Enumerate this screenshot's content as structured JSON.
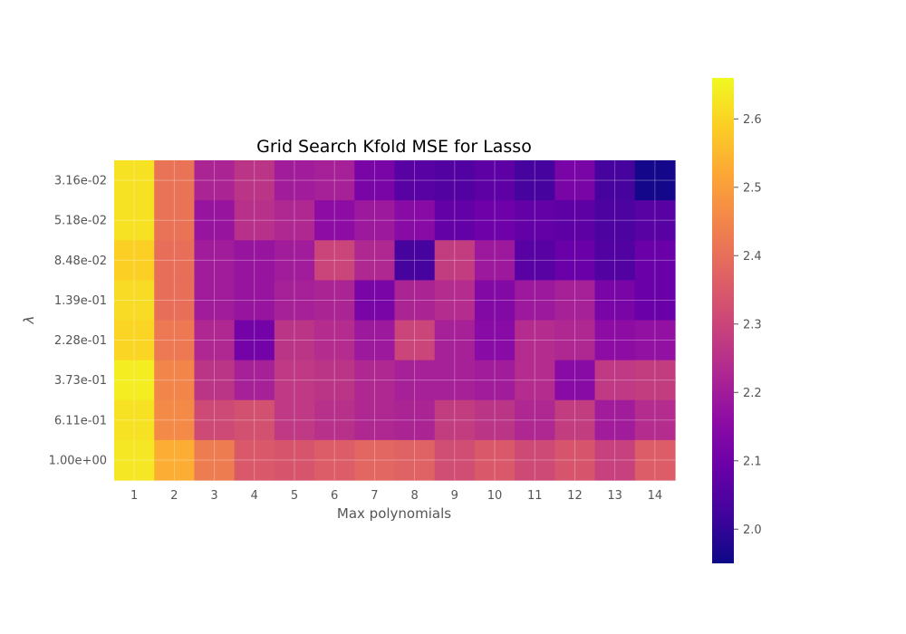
{
  "chart_data": {
    "type": "heatmap",
    "title": "Grid Search Kfold MSE for Lasso",
    "xlabel": "Max polynomials",
    "ylabel": "λ",
    "x_categories": [
      "1",
      "2",
      "3",
      "4",
      "5",
      "6",
      "7",
      "8",
      "9",
      "10",
      "11",
      "12",
      "13",
      "14"
    ],
    "y_categories": [
      "3.16e-02",
      "5.18e-02",
      "8.48e-02",
      "1.39e-01",
      "2.28e-01",
      "3.73e-01",
      "6.11e-01",
      "1.00e+00"
    ],
    "values": [
      [
        2.62,
        2.41,
        2.22,
        2.26,
        2.2,
        2.21,
        2.12,
        2.06,
        2.05,
        2.07,
        2.03,
        2.12,
        2.03,
        1.96
      ],
      [
        2.62,
        2.41,
        2.18,
        2.25,
        2.23,
        2.16,
        2.19,
        2.15,
        2.08,
        2.1,
        2.08,
        2.07,
        2.04,
        2.06
      ],
      [
        2.59,
        2.4,
        2.2,
        2.18,
        2.2,
        2.3,
        2.23,
        2.03,
        2.28,
        2.19,
        2.06,
        2.09,
        2.05,
        2.09
      ],
      [
        2.61,
        2.4,
        2.2,
        2.18,
        2.21,
        2.22,
        2.12,
        2.22,
        2.24,
        2.14,
        2.19,
        2.21,
        2.12,
        2.09
      ],
      [
        2.6,
        2.42,
        2.23,
        2.11,
        2.26,
        2.24,
        2.19,
        2.3,
        2.21,
        2.15,
        2.24,
        2.23,
        2.16,
        2.17
      ],
      [
        2.64,
        2.45,
        2.26,
        2.21,
        2.27,
        2.26,
        2.23,
        2.21,
        2.21,
        2.2,
        2.24,
        2.15,
        2.27,
        2.28
      ],
      [
        2.62,
        2.46,
        2.31,
        2.33,
        2.27,
        2.25,
        2.23,
        2.22,
        2.28,
        2.26,
        2.23,
        2.28,
        2.2,
        2.24
      ],
      [
        2.63,
        2.53,
        2.43,
        2.35,
        2.34,
        2.36,
        2.38,
        2.37,
        2.32,
        2.35,
        2.31,
        2.34,
        2.29,
        2.36
      ]
    ],
    "colorbar": {
      "min": 1.95,
      "max": 2.66,
      "ticks": [
        "2.0",
        "2.1",
        "2.2",
        "2.3",
        "2.4",
        "2.5",
        "2.6"
      ],
      "colormap": "plasma"
    },
    "grid": true
  }
}
